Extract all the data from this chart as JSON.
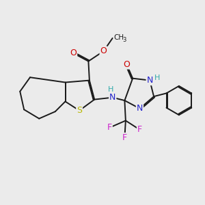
{
  "background_color": "#ebebeb",
  "bond_color": "#1a1a1a",
  "bond_width": 1.4,
  "dbo": 0.055,
  "atoms": {
    "S": {
      "color": "#b8b800"
    },
    "N": {
      "color": "#2222cc"
    },
    "O": {
      "color": "#cc0000"
    },
    "F": {
      "color": "#cc22cc"
    },
    "H": {
      "color": "#33aaaa"
    }
  },
  "figsize": [
    3.0,
    3.0
  ],
  "dpi": 100
}
